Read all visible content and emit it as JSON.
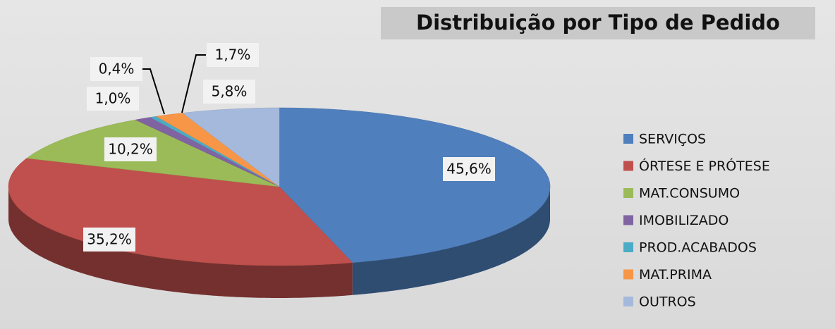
{
  "chart_data": {
    "type": "pie3d",
    "title": "Distribuição por Tipo de Pedido",
    "categories": [
      "SERVIÇOS",
      "ÓRTESE E PRÓTESE",
      "MAT.CONSUMO",
      "IMOBILIZADO",
      "PROD.ACABADOS",
      "MAT.PRIMA",
      "OUTROS"
    ],
    "values": [
      45.6,
      35.2,
      10.2,
      1.0,
      0.4,
      1.7,
      5.8
    ],
    "value_labels": [
      "45,6%",
      "35,2%",
      "10,2%",
      "1,0%",
      "0,4%",
      "1,7%",
      "5,8%"
    ],
    "colors": [
      "#4f7fbd",
      "#c0504d",
      "#9bbb59",
      "#8064a2",
      "#4bacc6",
      "#f79646",
      "#a5b9dc"
    ],
    "legend": "right"
  }
}
